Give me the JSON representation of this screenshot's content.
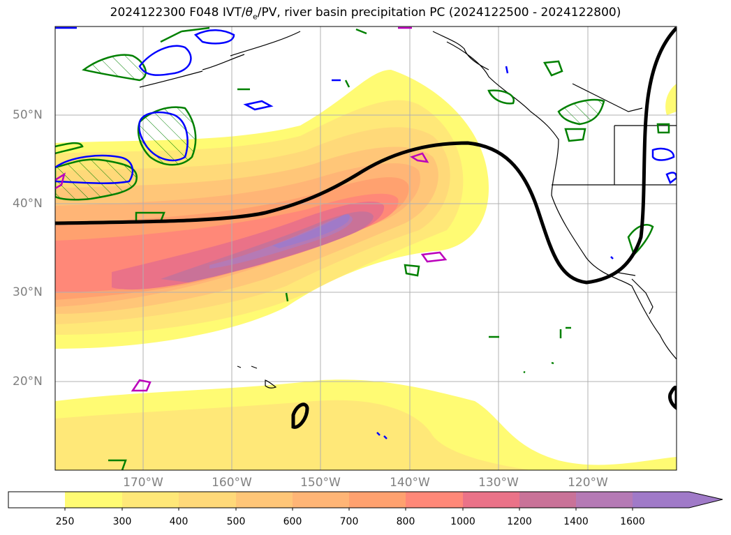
{
  "title": "2024122300 F048 IVT/θe/PV, river basin precipitation PC (2024122500 - 2024122800)",
  "title_parts": {
    "pre": "2024122300 F048 IVT/",
    "theta": "θ",
    "sub": "e",
    "post": "/PV, river basin precipitation PC (2024122500 - 2024122800)"
  },
  "lat_labels": [
    "50°N",
    "40°N",
    "30°N",
    "20°N"
  ],
  "lon_labels": [
    "170°W",
    "160°W",
    "150°W",
    "140°W",
    "130°W",
    "120°W"
  ],
  "colorbar": {
    "ticks": [
      "250",
      "300",
      "400",
      "500",
      "600",
      "700",
      "800",
      "1000",
      "1200",
      "1400",
      "1600"
    ],
    "colors": [
      "#ffffff",
      "#fffb73",
      "#ffe878",
      "#ffd979",
      "#ffc678",
      "#ffb576",
      "#ffa16f",
      "#ff8878",
      "#ea7288",
      "#c97298",
      "#b57ab5",
      "#a07ac8"
    ],
    "extend": "max"
  },
  "contour_colors": {
    "theta_e": "#008000",
    "pv": "#0000ff",
    "precip": "#bb00bb",
    "ridge": "#000000"
  }
}
